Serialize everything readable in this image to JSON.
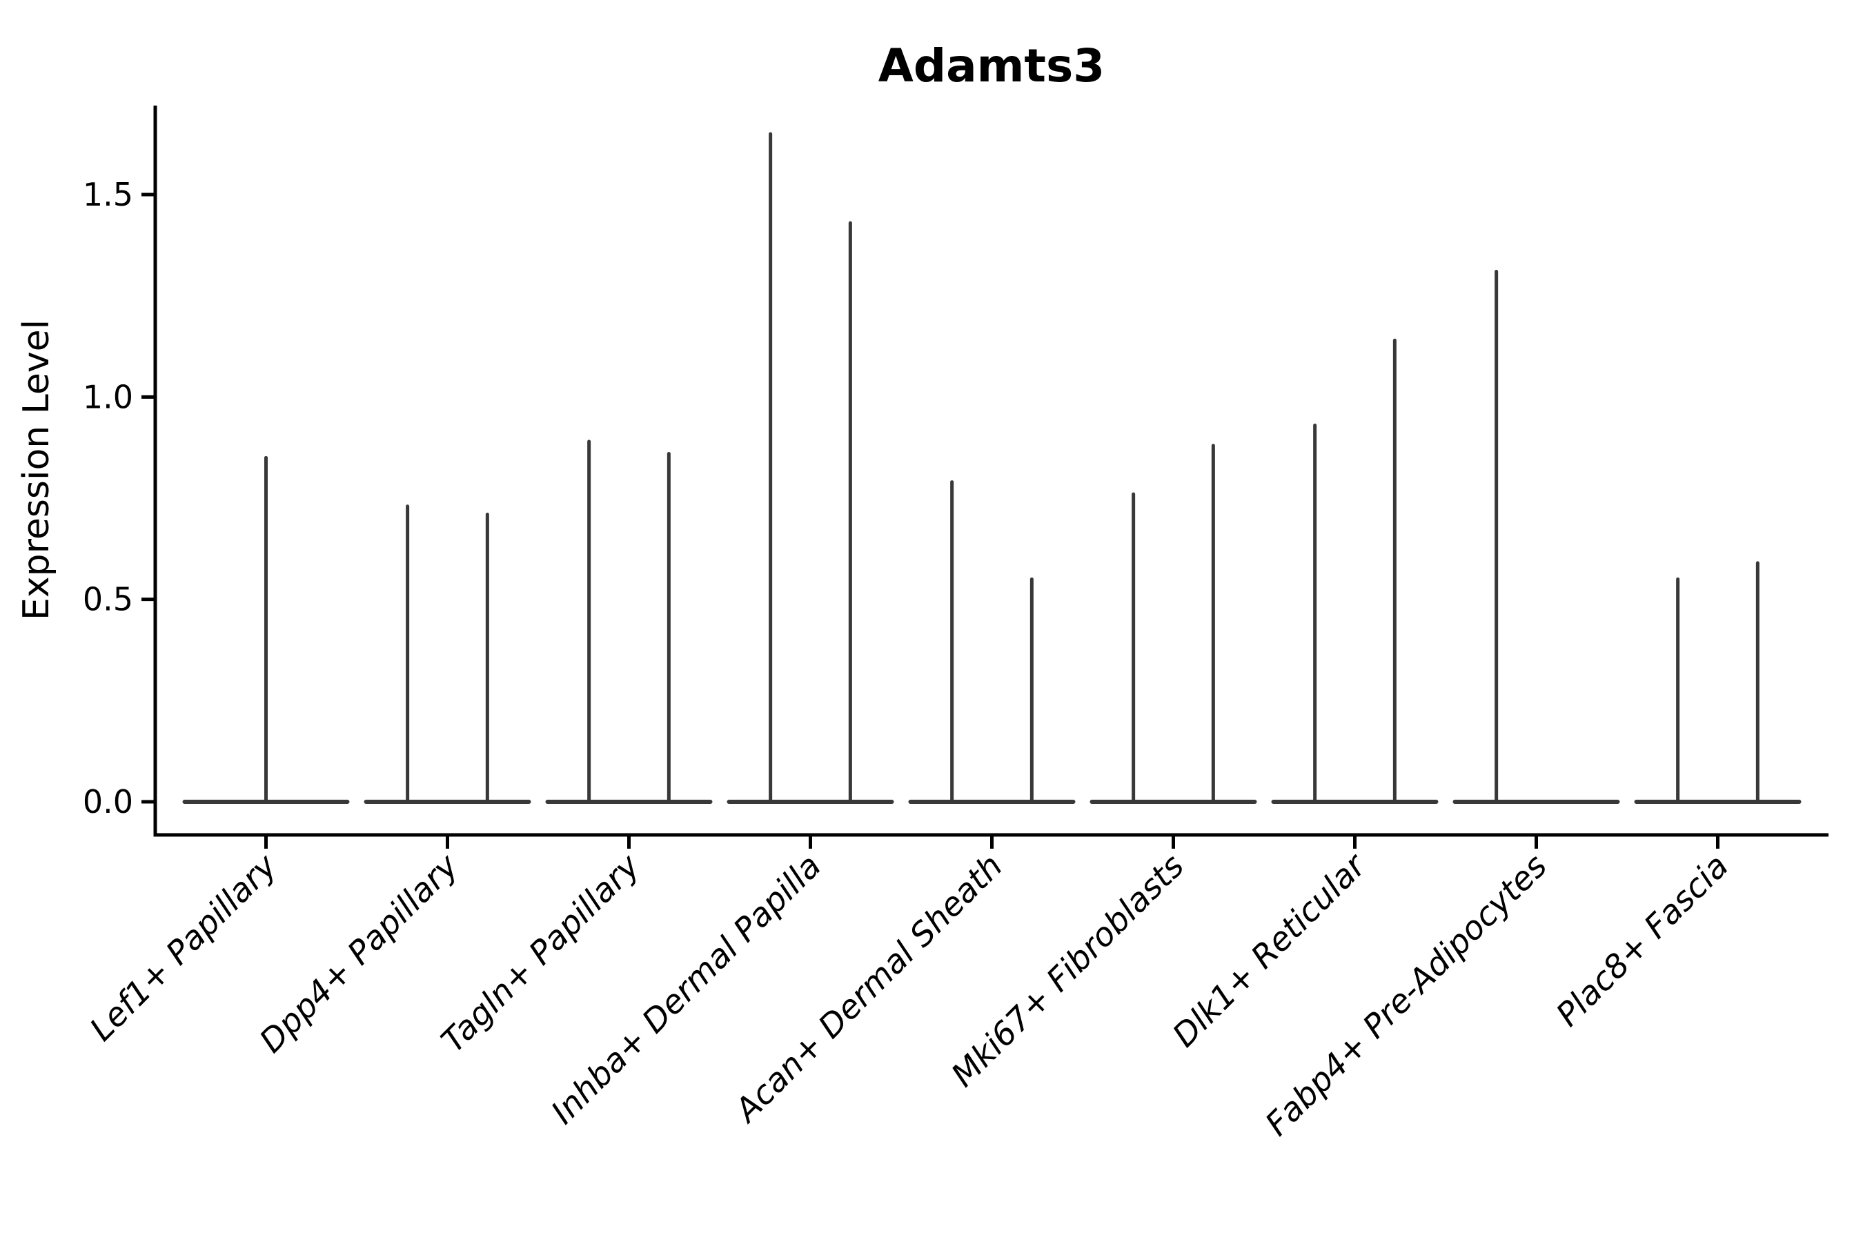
{
  "chart_data": {
    "type": "violin",
    "title": "Adamts3",
    "xlabel": "",
    "ylabel": "Expression Level",
    "ylim": [
      0,
      1.72
    ],
    "grid": false,
    "legend_position": "none",
    "yticks": [
      {
        "value": 0.0,
        "label": "0.0"
      },
      {
        "value": 0.5,
        "label": "0.5"
      },
      {
        "value": 1.0,
        "label": "1.0"
      },
      {
        "value": 1.5,
        "label": "1.5"
      }
    ],
    "categories": [
      {
        "label": "Lef1+ Papillary",
        "spikes": [
          {
            "x_offset_frac": 0.0,
            "max": 0.85
          }
        ]
      },
      {
        "label": "Dpp4+ Papillary",
        "spikes": [
          {
            "x_offset_frac": -0.22,
            "max": 0.73
          },
          {
            "x_offset_frac": 0.22,
            "max": 0.71
          }
        ]
      },
      {
        "label": "Tagln+ Papillary",
        "spikes": [
          {
            "x_offset_frac": -0.22,
            "max": 0.89
          },
          {
            "x_offset_frac": 0.22,
            "max": 0.86
          }
        ]
      },
      {
        "label": "Inhba+ Dermal Papilla",
        "spikes": [
          {
            "x_offset_frac": -0.22,
            "max": 1.65
          },
          {
            "x_offset_frac": 0.22,
            "max": 1.43
          }
        ]
      },
      {
        "label": "Acan+ Dermal Sheath",
        "spikes": [
          {
            "x_offset_frac": -0.22,
            "max": 0.79
          },
          {
            "x_offset_frac": 0.22,
            "max": 0.55
          }
        ]
      },
      {
        "label": "Mki67+ Fibroblasts",
        "spikes": [
          {
            "x_offset_frac": -0.22,
            "max": 0.76
          },
          {
            "x_offset_frac": 0.22,
            "max": 0.88
          }
        ]
      },
      {
        "label": "Dlk1+ Reticular",
        "spikes": [
          {
            "x_offset_frac": -0.22,
            "max": 0.93
          },
          {
            "x_offset_frac": 0.22,
            "max": 1.14
          }
        ]
      },
      {
        "label": "Fabp4+ Pre-Adipocytes",
        "spikes": [
          {
            "x_offset_frac": -0.22,
            "max": 1.31
          }
        ]
      },
      {
        "label": "Plac8+ Fascia",
        "spikes": [
          {
            "x_offset_frac": -0.22,
            "max": 0.55
          },
          {
            "x_offset_frac": 0.22,
            "max": 0.59
          }
        ]
      }
    ],
    "colors": {
      "violin": "#383838",
      "axis": "#000000",
      "background": "#ffffff"
    }
  }
}
